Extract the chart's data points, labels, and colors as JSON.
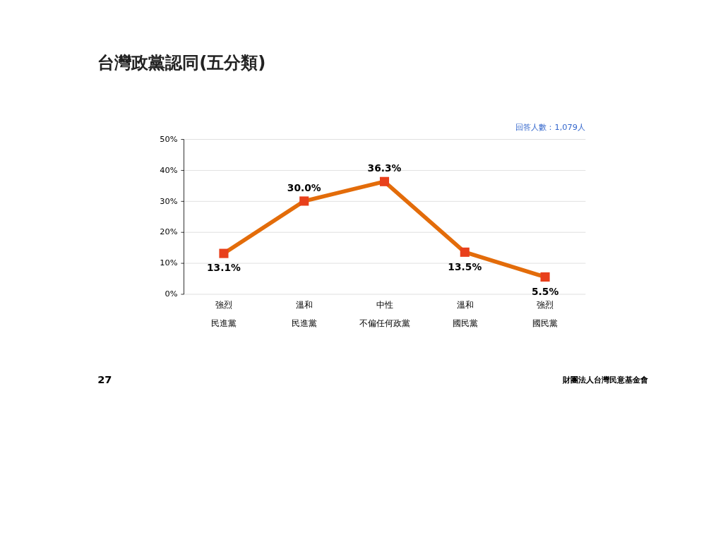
{
  "chart_data": {
    "type": "line",
    "title": "台灣政黨認同(五分類)",
    "categories": [
      "強烈民進黨",
      "溫和民進黨",
      "中性不偏任何政黨",
      "溫和國民黨",
      "強烈國民黨"
    ],
    "series": [
      {
        "color": "#e36c0a",
        "values": [
          13.1,
          30.0,
          36.3,
          13.5,
          5.5
        ],
        "value_labels": [
          "13.1%",
          "30.0%",
          "36.3%",
          "13.5%",
          "5.5%"
        ]
      }
    ],
    "ylim": [
      0,
      50
    ],
    "yticks": [
      {
        "value": 0,
        "label": "0%"
      },
      {
        "value": 10,
        "label": "10%"
      },
      {
        "value": 20,
        "label": "20%"
      },
      {
        "value": 30,
        "label": "30%"
      },
      {
        "value": 40,
        "label": "40%"
      },
      {
        "value": 50,
        "label": "50%"
      }
    ],
    "grid": "y",
    "marker": "square",
    "line_style": "solid",
    "annotations": [
      "回答人數：1,079人",
      "27",
      "財團法人台灣民意基金會"
    ]
  }
}
